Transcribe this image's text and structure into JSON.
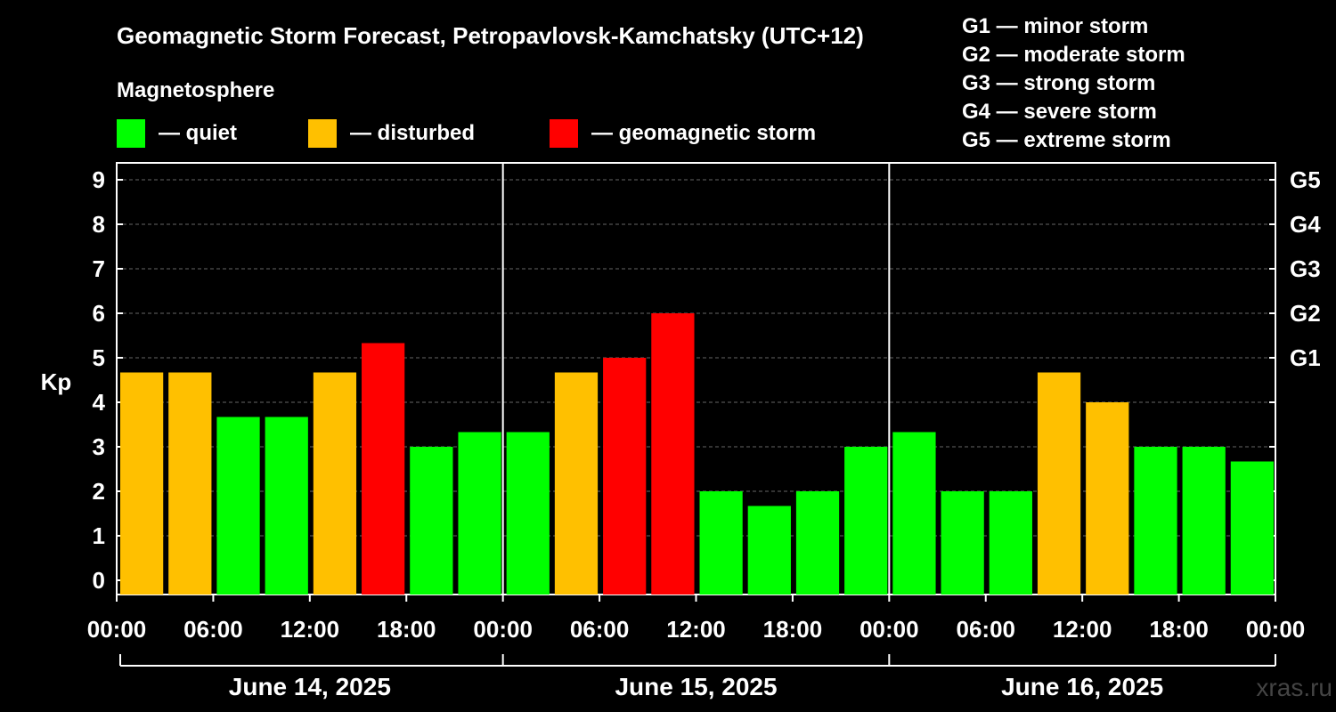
{
  "chart_data": {
    "type": "bar",
    "title": "Geomagnetic Storm Forecast, Petropavlovsk-Kamchatsky (UTC+12)",
    "ylabel": "Kp",
    "ylim": [
      0,
      9
    ],
    "yticks": [
      "0",
      "1",
      "2",
      "3",
      "4",
      "5",
      "6",
      "7",
      "8",
      "9"
    ],
    "grid": true,
    "legend": {
      "title": "Magnetosphere",
      "items": [
        {
          "label": "— quiet",
          "color": "#00ff00"
        },
        {
          "label": "— disturbed",
          "color": "#ffc000"
        },
        {
          "label": "— geomagnetic storm",
          "color": "#ff0000"
        }
      ]
    },
    "storm_scale": [
      "G1 — minor storm",
      "G2 — moderate storm",
      "G3 — strong storm",
      "G4 — severe storm",
      "G5 — extreme storm"
    ],
    "right_axis": [
      {
        "label": "G1",
        "kp": 5
      },
      {
        "label": "G2",
        "kp": 6
      },
      {
        "label": "G3",
        "kp": 7
      },
      {
        "label": "G4",
        "kp": 8
      },
      {
        "label": "G5",
        "kp": 9
      }
    ],
    "x_tick_labels": [
      "00:00",
      "06:00",
      "12:00",
      "18:00",
      "00:00",
      "06:00",
      "12:00",
      "18:00",
      "00:00",
      "06:00",
      "12:00",
      "18:00",
      "00:00"
    ],
    "days": [
      "June 14, 2025",
      "June 15, 2025",
      "June 16, 2025"
    ],
    "bars_per_day": 8,
    "values": [
      4.67,
      4.67,
      3.67,
      3.67,
      4.67,
      5.33,
      3.0,
      3.33,
      3.33,
      4.67,
      5.0,
      6.0,
      2.0,
      1.67,
      2.0,
      3.0,
      3.33,
      2.0,
      2.0,
      4.67,
      4.0,
      3.0,
      3.0,
      2.67
    ],
    "colors": [
      "#ffc000",
      "#ffc000",
      "#00ff00",
      "#00ff00",
      "#ffc000",
      "#ff0000",
      "#00ff00",
      "#00ff00",
      "#00ff00",
      "#ffc000",
      "#ff0000",
      "#ff0000",
      "#00ff00",
      "#00ff00",
      "#00ff00",
      "#00ff00",
      "#00ff00",
      "#00ff00",
      "#00ff00",
      "#ffc000",
      "#ffc000",
      "#00ff00",
      "#00ff00",
      "#00ff00"
    ],
    "watermark": "xras.ru"
  }
}
